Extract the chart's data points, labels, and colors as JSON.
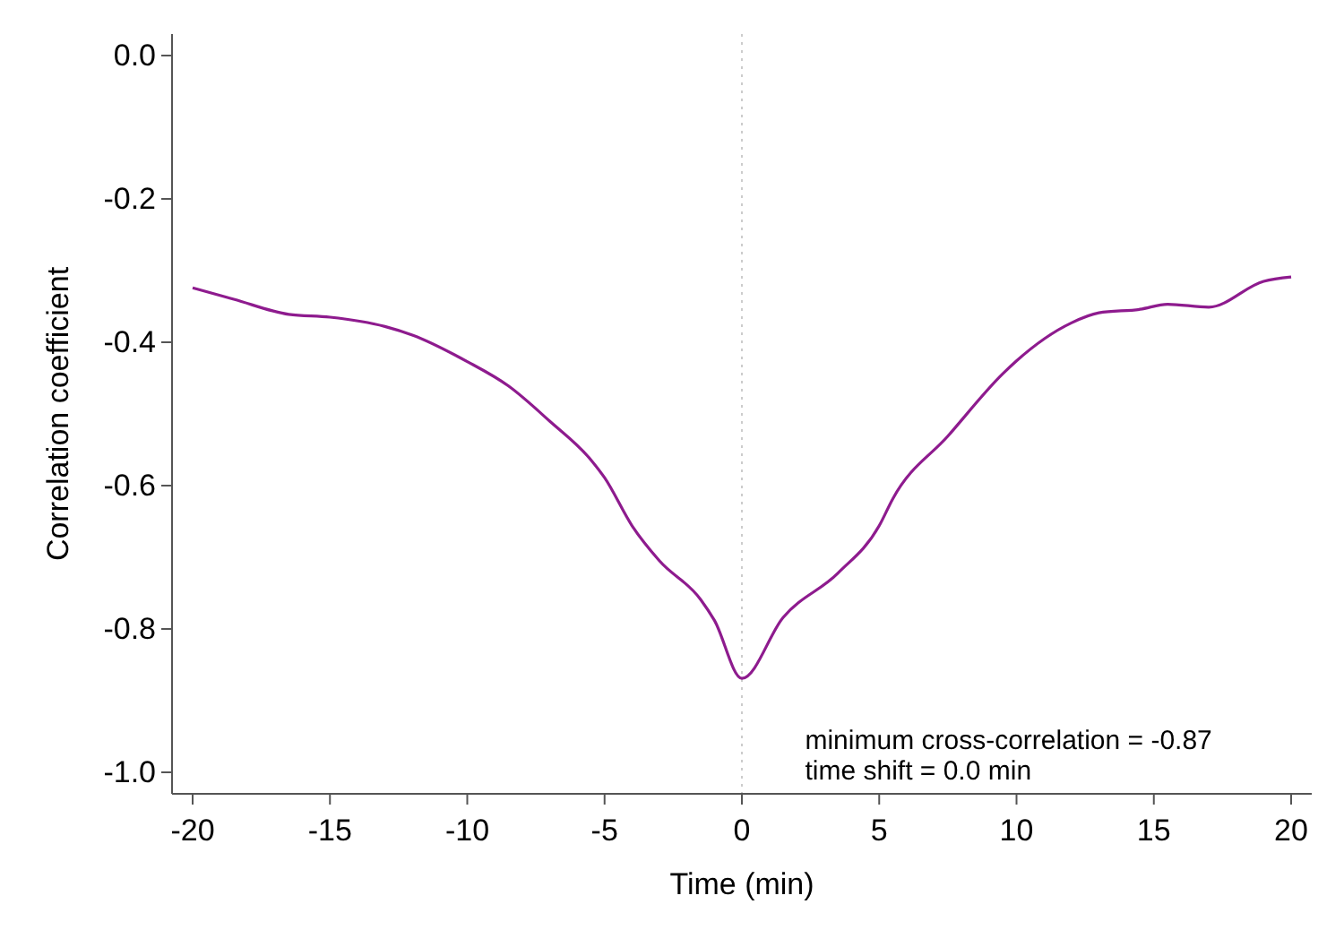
{
  "chart_data": {
    "type": "line",
    "xlabel": "Time (min)",
    "ylabel": "Correlation coefficient",
    "x": [
      -20,
      -18.5,
      -16.5,
      -15,
      -13,
      -12,
      -10,
      -8.5,
      -7,
      -5.5,
      -5,
      -4,
      -3,
      -1.5,
      -1,
      0,
      1.5,
      3.5,
      5,
      5.5,
      7.5,
      9.5,
      10,
      12,
      13,
      14.5,
      15.5,
      17,
      19,
      20
    ],
    "series": [
      {
        "color": "#8e1b8e",
        "values": [
          -0.324,
          -0.34,
          -0.361,
          -0.365,
          -0.378,
          -0.39,
          -0.427,
          -0.461,
          -0.51,
          -0.564,
          -0.589,
          -0.656,
          -0.705,
          -0.759,
          -0.788,
          -0.869,
          -0.784,
          -0.722,
          -0.656,
          -0.618,
          -0.531,
          -0.444,
          -0.426,
          -0.373,
          -0.359,
          -0.354,
          -0.347,
          -0.351,
          -0.315,
          -0.309
        ]
      }
    ],
    "xlim": [
      -20.75,
      20.75
    ],
    "ylim": [
      -1.03,
      0.03
    ],
    "xticks": [
      -20,
      -15,
      -10,
      -5,
      0,
      5,
      10,
      15,
      20
    ],
    "yticks": [
      {
        "value": 0,
        "label": "0.0"
      },
      {
        "value": -0.2,
        "label": "-0.2"
      },
      {
        "value": -0.4,
        "label": "-0.4"
      },
      {
        "value": -0.6,
        "label": "-0.6"
      },
      {
        "value": -0.8,
        "label": "-0.8"
      },
      {
        "value": -1,
        "label": "-1.0"
      }
    ],
    "ref_lines": [
      {
        "axis": "x",
        "value": 0,
        "color": "#cccccc",
        "line_style": "dotted"
      }
    ],
    "annotations": [
      "minimum cross-correlation = -0.87",
      "time shift = 0.0 min"
    ],
    "line_style": "solid"
  }
}
